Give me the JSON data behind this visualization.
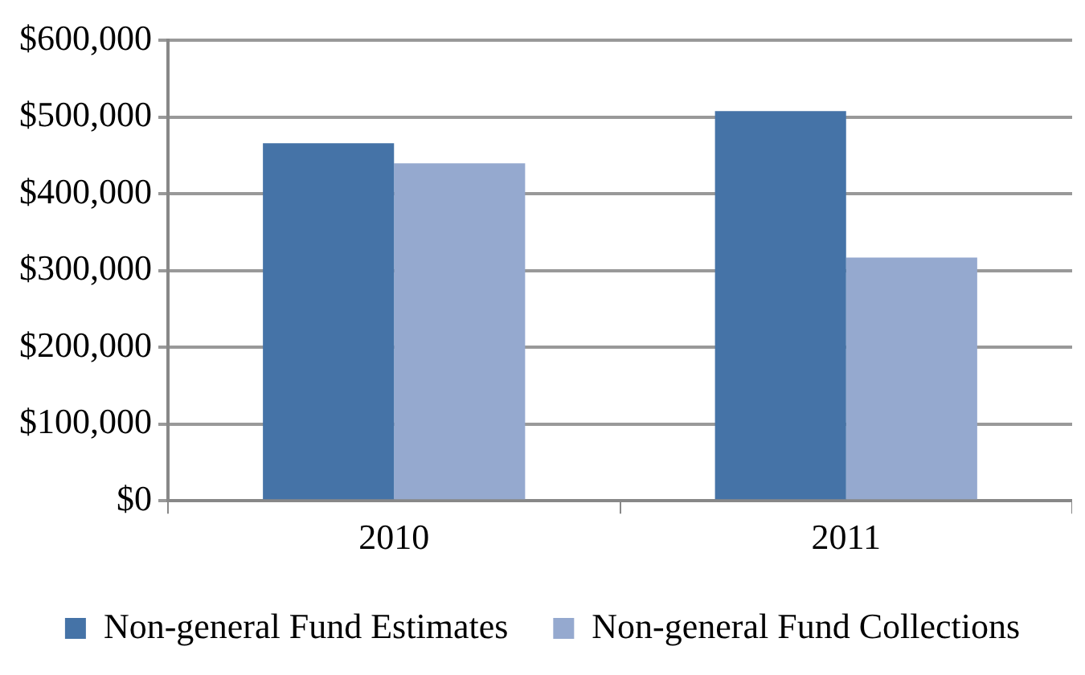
{
  "chart_data": {
    "type": "bar",
    "categories": [
      "2010",
      "2011"
    ],
    "series": [
      {
        "name": "Non-general Fund Estimates",
        "color": "#4573a7",
        "values": [
          466000,
          508000
        ]
      },
      {
        "name": "Non-general Fund Collections",
        "color": "#95a9cf",
        "values": [
          440000,
          317000
        ]
      }
    ],
    "ylim": [
      0,
      600000
    ],
    "yticks": [
      {
        "value": 0,
        "label": "$0"
      },
      {
        "value": 100000,
        "label": "$100,000"
      },
      {
        "value": 200000,
        "label": "$200,000"
      },
      {
        "value": 300000,
        "label": "$300,000"
      },
      {
        "value": 400000,
        "label": "$400,000"
      },
      {
        "value": 500000,
        "label": "$500,000"
      },
      {
        "value": 600000,
        "label": "$600,000"
      }
    ],
    "grid": "y",
    "legend": "bottom"
  }
}
